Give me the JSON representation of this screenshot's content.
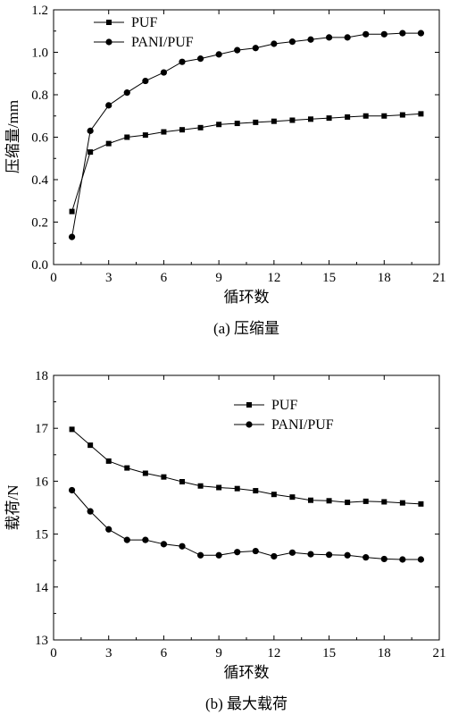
{
  "chart_data": [
    {
      "type": "line",
      "caption": "(a) 压缩量",
      "xlabel": "循环数",
      "ylabel": "压缩量/mm",
      "xlim": [
        0,
        21
      ],
      "ylim": [
        0.0,
        1.2
      ],
      "xticks": [
        "0",
        "3",
        "6",
        "9",
        "12",
        "15",
        "18",
        "21"
      ],
      "yticks": [
        "0.0",
        "0.2",
        "0.4",
        "0.6",
        "0.8",
        "1.0",
        "1.2"
      ],
      "legend_position": "top-left",
      "x": [
        1,
        2,
        3,
        4,
        5,
        6,
        7,
        8,
        9,
        10,
        11,
        12,
        13,
        14,
        15,
        16,
        17,
        18,
        19,
        20
      ],
      "series": [
        {
          "name": "PUF",
          "marker": "square",
          "values": [
            0.25,
            0.53,
            0.57,
            0.6,
            0.61,
            0.625,
            0.635,
            0.645,
            0.66,
            0.665,
            0.67,
            0.675,
            0.68,
            0.685,
            0.69,
            0.695,
            0.7,
            0.7,
            0.705,
            0.71
          ]
        },
        {
          "name": "PANI/PUF",
          "marker": "circle",
          "values": [
            0.13,
            0.63,
            0.75,
            0.81,
            0.865,
            0.905,
            0.955,
            0.97,
            0.99,
            1.01,
            1.02,
            1.04,
            1.05,
            1.06,
            1.07,
            1.07,
            1.085,
            1.085,
            1.09,
            1.09
          ]
        }
      ]
    },
    {
      "type": "line",
      "caption": "(b) 最大载荷",
      "xlabel": "循环数",
      "ylabel": "载荷/N",
      "xlim": [
        0,
        21
      ],
      "ylim": [
        13,
        18
      ],
      "xticks": [
        "0",
        "3",
        "6",
        "9",
        "12",
        "15",
        "18",
        "21"
      ],
      "yticks": [
        "13",
        "14",
        "15",
        "16",
        "17",
        "18"
      ],
      "legend_position": "top-right",
      "x": [
        1,
        2,
        3,
        4,
        5,
        6,
        7,
        8,
        9,
        10,
        11,
        12,
        13,
        14,
        15,
        16,
        17,
        18,
        19,
        20
      ],
      "series": [
        {
          "name": "PUF",
          "marker": "square",
          "values": [
            16.98,
            16.68,
            16.38,
            16.25,
            16.15,
            16.08,
            15.99,
            15.91,
            15.88,
            15.86,
            15.82,
            15.75,
            15.7,
            15.64,
            15.63,
            15.6,
            15.62,
            15.61,
            15.59,
            15.57
          ]
        },
        {
          "name": "PANI/PUF",
          "marker": "circle",
          "values": [
            15.83,
            15.43,
            15.09,
            14.89,
            14.89,
            14.81,
            14.77,
            14.6,
            14.6,
            14.66,
            14.68,
            14.58,
            14.65,
            14.62,
            14.61,
            14.6,
            14.56,
            14.53,
            14.52,
            14.52
          ]
        }
      ]
    }
  ]
}
